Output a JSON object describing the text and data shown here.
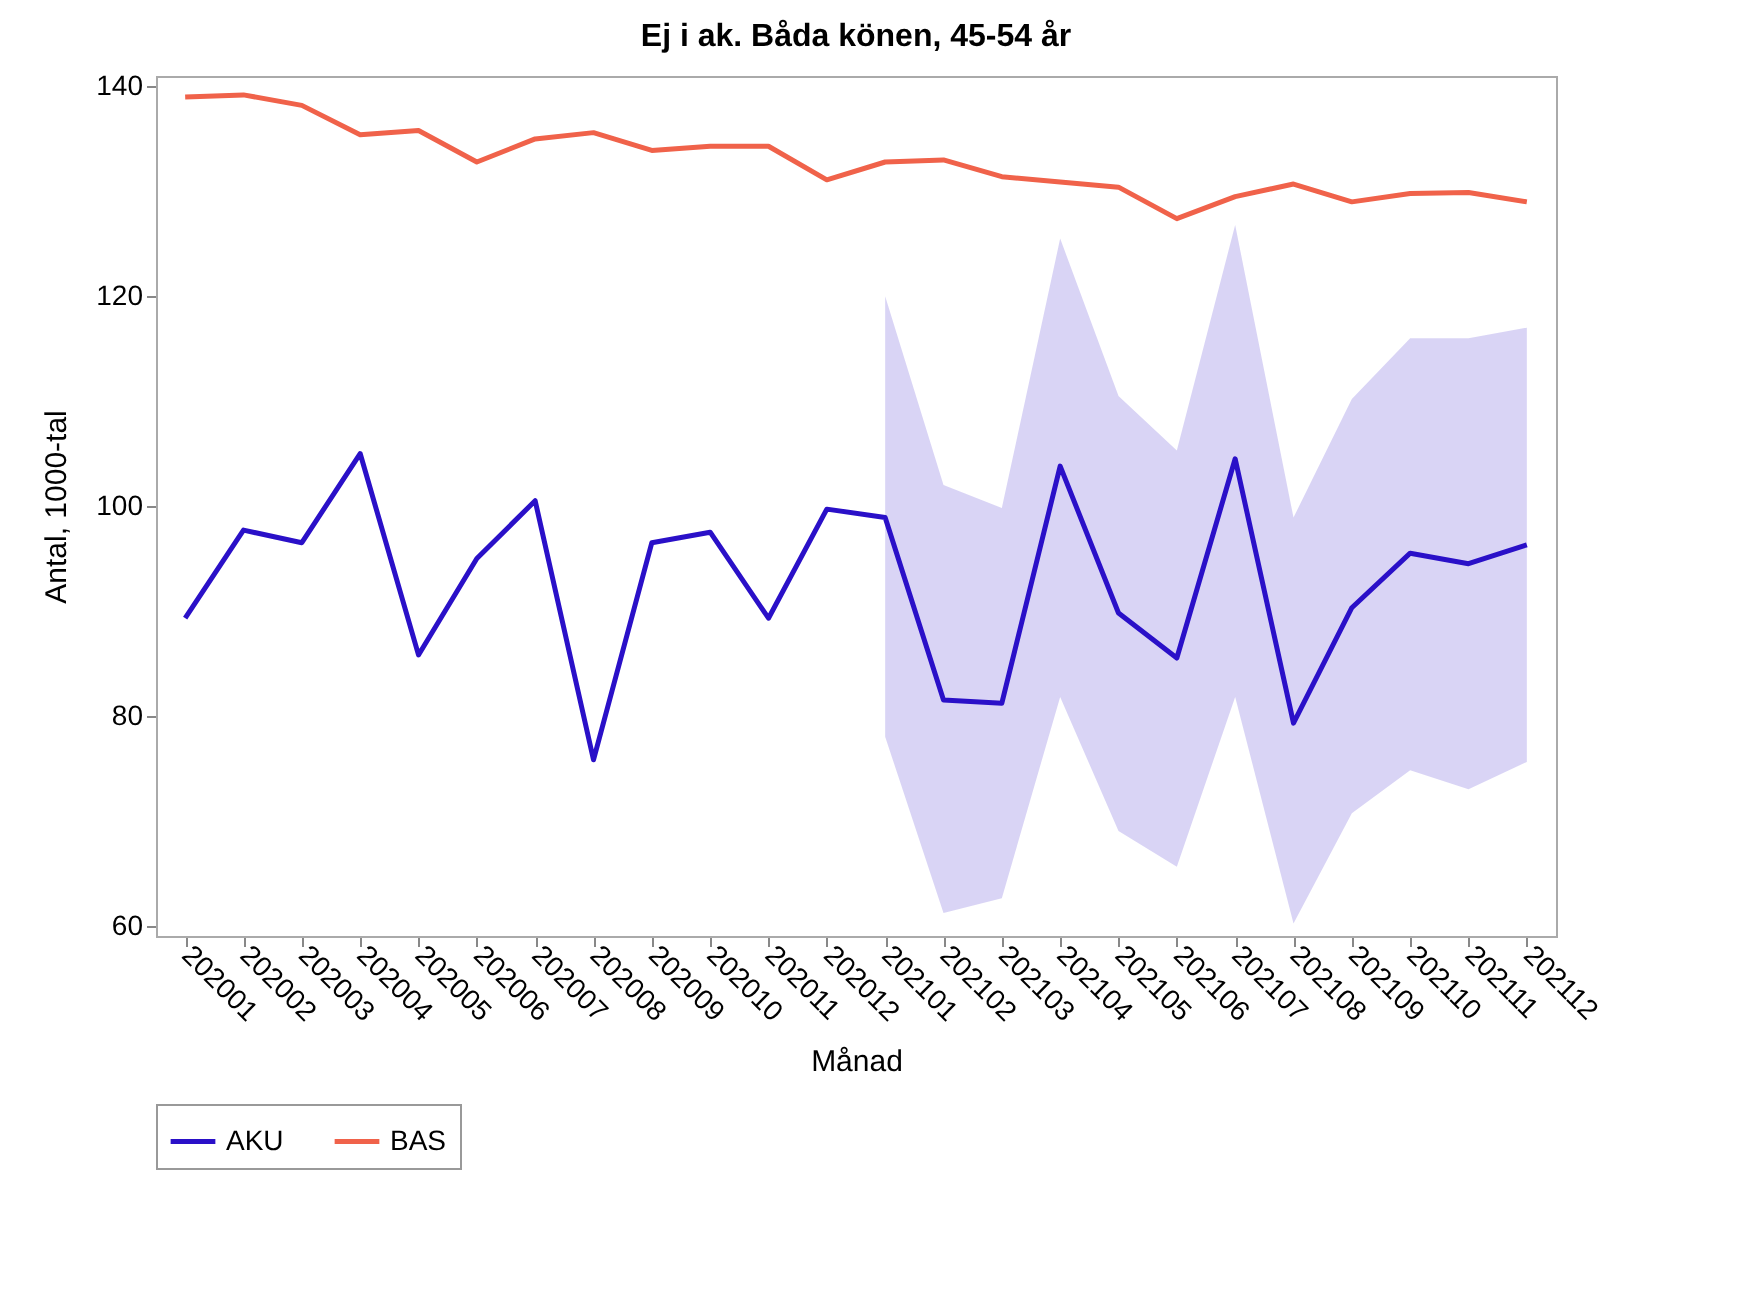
{
  "chart_data": {
    "type": "line",
    "title": "Ej i ak. Båda könen, 45-54 år",
    "xlabel": "Månad",
    "ylabel": "Antal, 1000-tal",
    "categories": [
      "202001",
      "202002",
      "202003",
      "202004",
      "202005",
      "202006",
      "202007",
      "202008",
      "202009",
      "202010",
      "202011",
      "202012",
      "202101",
      "202102",
      "202103",
      "202104",
      "202105",
      "202106",
      "202107",
      "202108",
      "202109",
      "202110",
      "202111",
      "202112"
    ],
    "series": [
      {
        "name": "AKU",
        "color": "#2a10c8",
        "values": [
          89.3,
          97.7,
          96.5,
          105,
          85.8,
          95,
          100.5,
          75.8,
          96.5,
          97.5,
          89.3,
          99.7,
          98.9,
          81.5,
          81.2,
          103.8,
          89.8,
          85.5,
          104.5,
          79.3,
          90.3,
          95.5,
          94.5,
          96.3
        ],
        "lower": [
          null,
          null,
          null,
          null,
          null,
          null,
          null,
          null,
          null,
          null,
          null,
          null,
          78,
          61.2,
          62.6,
          81.8,
          69,
          65.6,
          81.8,
          60.2,
          70.7,
          74.8,
          73,
          75.6
        ],
        "upper": [
          null,
          null,
          null,
          null,
          null,
          null,
          null,
          null,
          null,
          null,
          null,
          null,
          120,
          102,
          99.8,
          125.5,
          110.5,
          105.3,
          126.8,
          98.9,
          110.2,
          116,
          116,
          117
        ]
      },
      {
        "name": "BAS",
        "color": "#f0624a",
        "values": [
          139,
          139.2,
          138.2,
          135.4,
          135.8,
          132.8,
          135,
          135.6,
          133.9,
          134.3,
          134.3,
          131.1,
          132.8,
          133,
          131.4,
          130.9,
          130.4,
          127.4,
          129.5,
          130.7,
          129,
          129.8,
          129.9,
          129
        ]
      }
    ],
    "ylim": [
      59,
      141
    ],
    "yticks": [
      60,
      80,
      100,
      120,
      140
    ],
    "grid": false,
    "legend": "bottom",
    "line_style": "solid",
    "marker": "none"
  }
}
